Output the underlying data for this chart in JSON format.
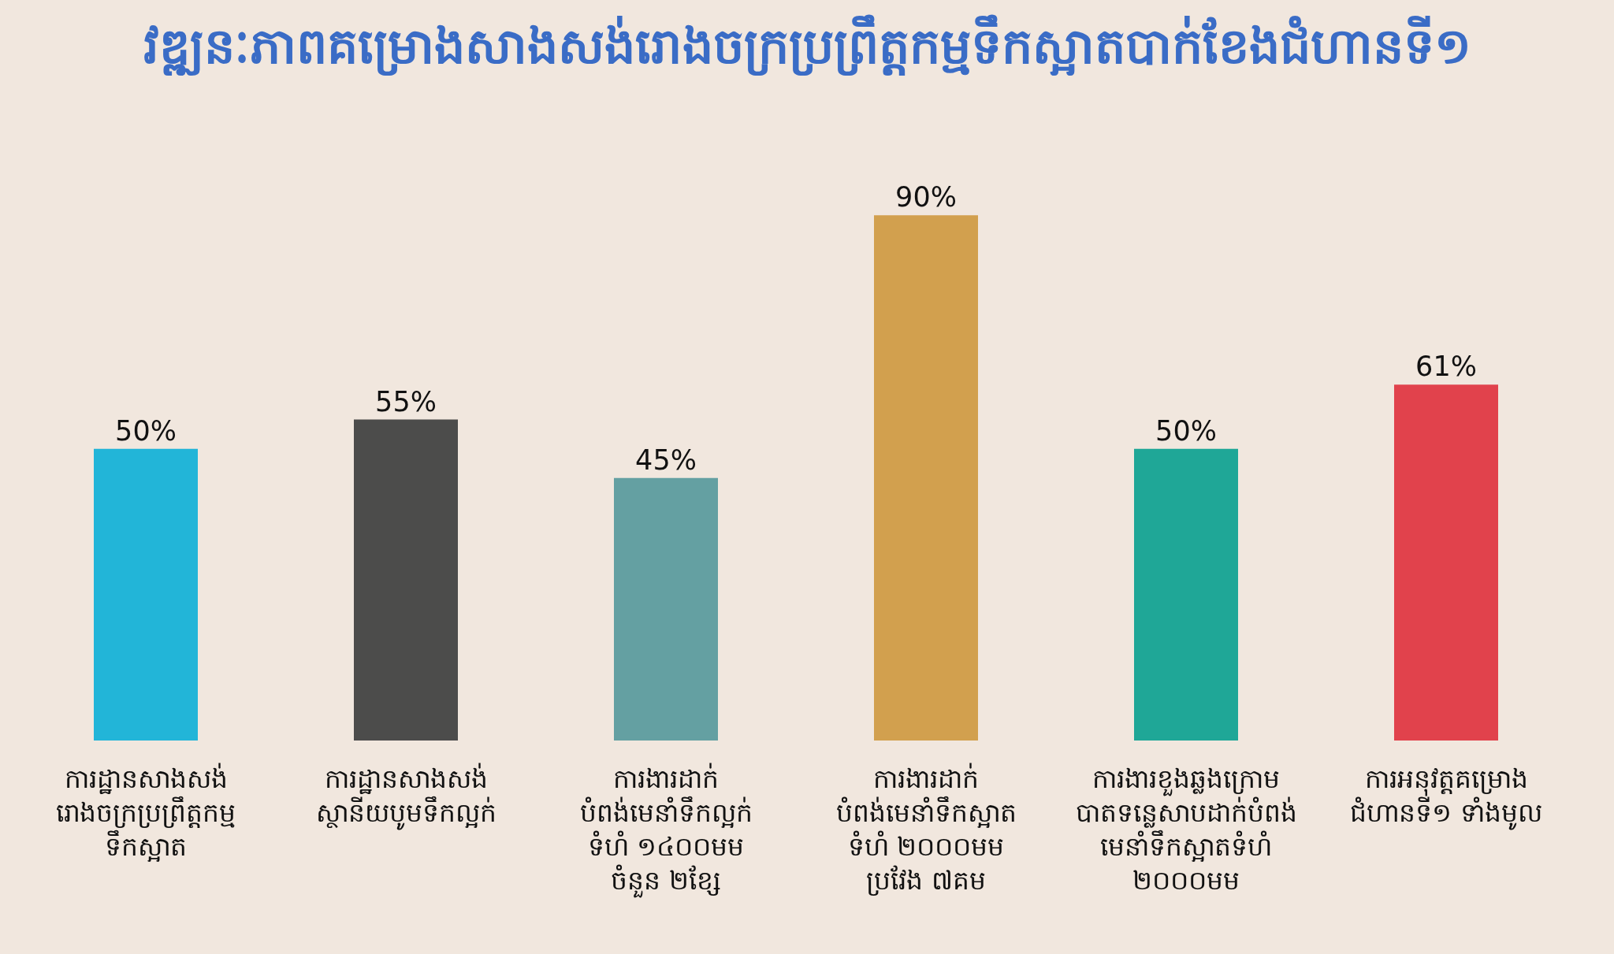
{
  "chart_data": {
    "type": "bar",
    "title": "វឌ្ឍនៈភាពគម្រោងសាងសង់រោងចក្រប្រព្រឹត្តកម្មទឹកស្អាតបាក់ខែងជំហានទី១",
    "categories": [
      "ការដ្ឋានសាងសង់\nរោងចក្រប្រព្រឹត្តកម្ម\nទឹកស្អាត",
      "ការដ្ឋានសាងសង់\nស្ថានីយបូមទឹកល្អក់",
      "ការងារដាក់\nបំពង់មេនាំទឹកល្អក់\nទំហំ ១៤០០មម\nចំនួន ២ខ្សែ",
      "ការងារដាក់\nបំពង់មេនាំទឹកស្អាត\nទំហំ ២០០០មម\nប្រវែង ៧គម",
      "ការងារខួងឆ្លងក្រោម\nបាតទន្លេសាបដាក់បំពង់\nមេនាំទឹកស្អាតទំហំ\n២០០០មម",
      "ការអនុវត្តគម្រោង\nជំហានទី១ ទាំងមូល"
    ],
    "values": [
      50,
      55,
      45,
      90,
      50,
      61
    ],
    "value_labels": [
      "50%",
      "55%",
      "45%",
      "90%",
      "50%",
      "61%"
    ],
    "colors": [
      "#22b5d8",
      "#4c4c4b",
      "#64a0a2",
      "#d2a04e",
      "#1fa797",
      "#e1424c"
    ],
    "tick_labels": "x",
    "grid": false
  }
}
